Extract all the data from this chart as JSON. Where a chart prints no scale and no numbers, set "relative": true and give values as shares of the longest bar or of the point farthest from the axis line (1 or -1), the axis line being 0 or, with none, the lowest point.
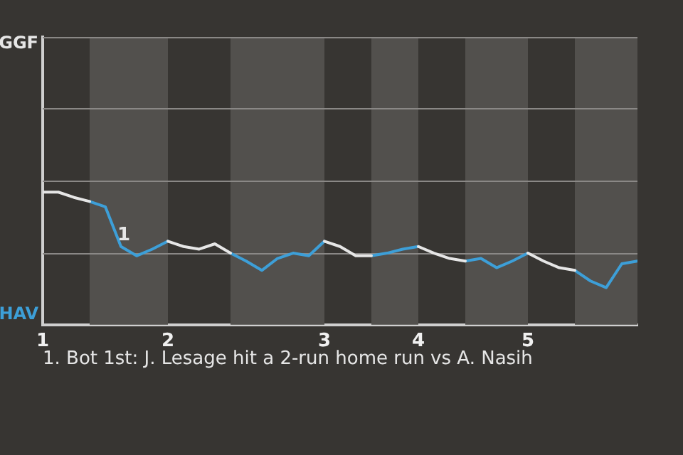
{
  "chart_data": {
    "type": "line",
    "relative": true,
    "categories": [
      "1",
      null,
      null,
      null,
      null,
      null,
      null,
      null,
      "2",
      null,
      null,
      null,
      null,
      null,
      null,
      null,
      null,
      null,
      "3",
      null,
      null,
      null,
      null,
      null,
      "4",
      null,
      null,
      null,
      null,
      null,
      null,
      "5",
      null,
      null,
      null,
      null,
      null,
      null,
      null
    ],
    "series": [
      {
        "color": "#e6e6e6",
        "values": [
          1,
          1,
          0.96,
          0.93,
          null,
          null,
          null,
          null,
          0.63,
          0.59,
          0.57,
          0.61,
          0.54,
          null,
          null,
          null,
          null,
          null,
          0.63,
          0.59,
          0.52,
          0.52,
          null,
          null,
          0.59,
          0.54,
          0.5,
          0.48,
          null,
          null,
          null,
          0.54,
          0.48,
          0.43,
          0.41,
          null,
          null,
          null,
          null
        ]
      },
      {
        "color": "#3d9fd8",
        "values": [
          null,
          null,
          null,
          0.93,
          0.89,
          0.59,
          0.52,
          0.57,
          0.63,
          null,
          null,
          null,
          0.54,
          0.48,
          0.41,
          0.5,
          0.54,
          0.52,
          0.63,
          null,
          null,
          0.52,
          0.54,
          0.57,
          0.59,
          null,
          null,
          0.48,
          0.5,
          0.43,
          0.48,
          0.54,
          null,
          null,
          0.41,
          0.33,
          0.28,
          0.46,
          0.48
        ]
      }
    ],
    "ref_lines": [
      {
        "axis": "y",
        "value": 0.54,
        "color": "#8a8886"
      },
      {
        "axis": "y",
        "value": 1.09,
        "color": "#8a8886"
      },
      {
        "axis": "y",
        "value": 1.63,
        "color": "#8a8886"
      },
      {
        "axis": "y",
        "value": 2.17,
        "color": "#8a8886"
      }
    ],
    "legend": false,
    "marker": "none",
    "line_style": "solid",
    "annotations": [
      "GGF",
      "HAV",
      {
        "text": "1",
        "y": 0.59
      },
      "1. Bot 1st: J. Lesage hit a 2-run home run vs A. Nasih"
    ]
  }
}
